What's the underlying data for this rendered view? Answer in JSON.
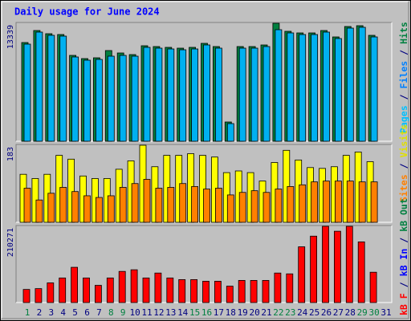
{
  "chart_data": [
    {
      "type": "bar",
      "title": "Daily usage for June 2024",
      "ylim": [
        0,
        13339
      ],
      "yticks": [
        13339
      ],
      "series": [
        {
          "color": "#008040",
          "values": [
            11161,
            12522,
            12159,
            12068,
            9709,
            9346,
            9436,
            10254,
            9981,
            9799,
            10798,
            10707,
            10616,
            10525,
            10616,
            11070,
            10707,
            2177,
            10707,
            10707,
            10888,
            13339,
            12431,
            12249,
            12249,
            12522,
            11796,
            12975,
            13066,
            11977,
            0
          ]
        },
        {
          "color": "#00b0f0",
          "values": [
            10980,
            12341,
            11978,
            11887,
            9528,
            9165,
            9255,
            9618,
            9709,
            9618,
            10617,
            10526,
            10435,
            10344,
            10435,
            10889,
            10526,
            1996,
            10526,
            10526,
            10707,
            12613,
            12250,
            12068,
            12068,
            12341,
            11615,
            12794,
            12885,
            11796,
            0
          ]
        }
      ],
      "side_labels": [
        {
          "text": "Pages",
          "color": "#00c0ff"
        },
        {
          "text": "/",
          "color": "#000080"
        },
        {
          "text": "Files",
          "color": "#0080ff"
        },
        {
          "text": "/",
          "color": "#000080"
        },
        {
          "text": "Hits",
          "color": "#008040"
        }
      ]
    },
    {
      "type": "bar",
      "ylim": [
        0,
        183
      ],
      "yticks": [
        183
      ],
      "series": [
        {
          "color": "#ffff00",
          "values": [
            114,
            104,
            114,
            159,
            150,
            110,
            104,
            104,
            126,
            146,
            183,
            132,
            159,
            159,
            163,
            159,
            155,
            118,
            122,
            118,
            98,
            142,
            171,
            148,
            130,
            128,
            132,
            159,
            167,
            144,
            0
          ]
        },
        {
          "color": "#ff8000",
          "values": [
            81,
            53,
            69,
            83,
            73,
            63,
            59,
            63,
            83,
            92,
            102,
            81,
            83,
            92,
            85,
            79,
            81,
            65,
            71,
            75,
            71,
            79,
            85,
            89,
            96,
            98,
            98,
            98,
            96,
            96,
            0
          ]
        }
      ],
      "side_labels": [
        {
          "text": "Sites",
          "color": "#ff8000"
        },
        {
          "text": "/",
          "color": "#000080"
        },
        {
          "text": "Visits",
          "color": "#e0e000"
        }
      ]
    },
    {
      "type": "bar",
      "categories": [
        "1",
        "2",
        "3",
        "4",
        "5",
        "6",
        "7",
        "8",
        "9",
        "10",
        "11",
        "12",
        "13",
        "14",
        "15",
        "16",
        "17",
        "18",
        "19",
        "20",
        "21",
        "22",
        "23",
        "24",
        "25",
        "26",
        "27",
        "28",
        "29",
        "30",
        "31"
      ],
      "category_colors": [
        "#008040",
        "#000080",
        "#000080",
        "#000080",
        "#000080",
        "#000080",
        "#000080",
        "#008040",
        "#008040",
        "#000080",
        "#000080",
        "#000080",
        "#000080",
        "#000080",
        "#008040",
        "#008040",
        "#000080",
        "#000080",
        "#000080",
        "#000080",
        "#000080",
        "#008040",
        "#008040",
        "#000080",
        "#000080",
        "#000080",
        "#000080",
        "#000080",
        "#008040",
        "#008040",
        "#000080"
      ],
      "ylim": [
        0,
        210271
      ],
      "yticks": [
        210271
      ],
      "series": [
        {
          "color": "#ff0000",
          "values": [
            36176,
            38437,
            54264,
            67830,
            97223,
            67830,
            47481,
            67830,
            85918,
            90440,
            67830,
            81396,
            67830,
            63308,
            63308,
            58786,
            58786,
            45220,
            61047,
            61047,
            61047,
            81396,
            79135,
            153748,
            183141,
            210271,
            196707,
            210271,
            167314,
            83657,
            0
          ]
        }
      ],
      "side_labels": [
        {
          "text": "kB F",
          "color": "#ff0000"
        },
        {
          "text": "/",
          "color": "#000080"
        },
        {
          "text": "kB In",
          "color": "#0000ff"
        },
        {
          "text": "/",
          "color": "#000080"
        },
        {
          "text": "kB Out",
          "color": "#008040"
        }
      ]
    }
  ]
}
